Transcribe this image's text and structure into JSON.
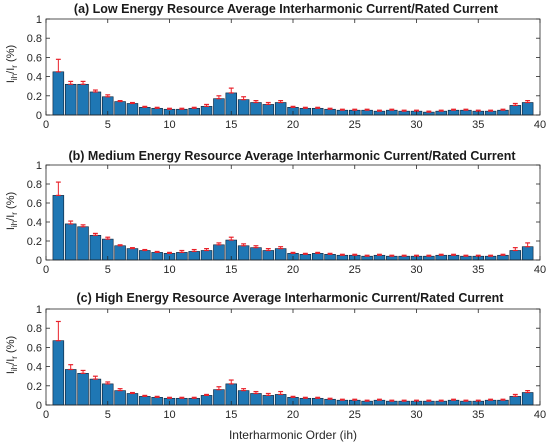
{
  "figure": {
    "xlabel": "Interharmonic Order (ih)"
  },
  "colors": {
    "bar": "#1f77b4",
    "bar_edge": "#0b1e33",
    "error": "#e8212a",
    "axis": "#262626"
  },
  "chart_data": [
    {
      "type": "bar",
      "title": "(a) Low Energy Resource Average Interharmonic Current/Rated Current",
      "ylabel": {
        "prefix": "I",
        "sub1": "ih",
        "mid": "/I",
        "sub2": "r",
        "suffix": " (%)"
      },
      "xlabel": "",
      "xlim": [
        0,
        40
      ],
      "ylim": [
        0,
        1
      ],
      "xticks": [
        0,
        5,
        10,
        15,
        20,
        25,
        30,
        35,
        40
      ],
      "xtick_labels": [
        "0",
        "5",
        "10",
        "15",
        "20",
        "25",
        "30",
        "35",
        "40"
      ],
      "yticks": [
        0,
        0.2,
        0.4,
        0.6,
        0.8,
        1
      ],
      "ytick_labels": [
        "0",
        "0.2",
        "0.4",
        "0.6",
        "0.8",
        "1"
      ],
      "x": [
        1,
        2,
        3,
        4,
        5,
        6,
        7,
        8,
        9,
        10,
        11,
        12,
        13,
        14,
        15,
        16,
        17,
        18,
        19,
        20,
        21,
        22,
        23,
        24,
        25,
        26,
        27,
        28,
        29,
        30,
        31,
        32,
        33,
        34,
        35,
        36,
        37,
        38,
        39
      ],
      "values": [
        0.45,
        0.32,
        0.32,
        0.24,
        0.19,
        0.14,
        0.12,
        0.08,
        0.07,
        0.06,
        0.06,
        0.07,
        0.09,
        0.17,
        0.23,
        0.16,
        0.13,
        0.11,
        0.13,
        0.08,
        0.07,
        0.07,
        0.06,
        0.05,
        0.05,
        0.05,
        0.04,
        0.05,
        0.04,
        0.04,
        0.03,
        0.04,
        0.05,
        0.05,
        0.04,
        0.04,
        0.05,
        0.1,
        0.13
      ],
      "error_upper": [
        0.58,
        0.35,
        0.35,
        0.26,
        0.21,
        0.15,
        0.13,
        0.09,
        0.08,
        0.07,
        0.07,
        0.08,
        0.11,
        0.2,
        0.28,
        0.19,
        0.15,
        0.13,
        0.15,
        0.09,
        0.08,
        0.08,
        0.07,
        0.06,
        0.06,
        0.06,
        0.05,
        0.06,
        0.05,
        0.05,
        0.04,
        0.05,
        0.06,
        0.06,
        0.05,
        0.05,
        0.06,
        0.12,
        0.15
      ]
    },
    {
      "type": "bar",
      "title": "(b) Medium Energy Resource Average Interharmonic Current/Rated Current",
      "ylabel": {
        "prefix": "I",
        "sub1": "ih",
        "mid": "/I",
        "sub2": "r",
        "suffix": " (%)"
      },
      "xlabel": "",
      "xlim": [
        0,
        40
      ],
      "ylim": [
        0,
        1
      ],
      "xticks": [
        0,
        5,
        10,
        15,
        20,
        25,
        30,
        35,
        40
      ],
      "xtick_labels": [
        "0",
        "5",
        "10",
        "15",
        "20",
        "25",
        "30",
        "35",
        "40"
      ],
      "yticks": [
        0,
        0.2,
        0.4,
        0.6,
        0.8,
        1
      ],
      "ytick_labels": [
        "0",
        "0.2",
        "0.4",
        "0.6",
        "0.8",
        "1"
      ],
      "x": [
        1,
        2,
        3,
        4,
        5,
        6,
        7,
        8,
        9,
        10,
        11,
        12,
        13,
        14,
        15,
        16,
        17,
        18,
        19,
        20,
        21,
        22,
        23,
        24,
        25,
        26,
        27,
        28,
        29,
        30,
        31,
        32,
        33,
        34,
        35,
        36,
        37,
        38,
        39
      ],
      "values": [
        0.68,
        0.38,
        0.35,
        0.26,
        0.22,
        0.15,
        0.12,
        0.1,
        0.08,
        0.07,
        0.08,
        0.09,
        0.1,
        0.16,
        0.21,
        0.15,
        0.13,
        0.1,
        0.12,
        0.07,
        0.06,
        0.07,
        0.06,
        0.05,
        0.05,
        0.04,
        0.05,
        0.04,
        0.04,
        0.04,
        0.04,
        0.05,
        0.05,
        0.04,
        0.04,
        0.04,
        0.05,
        0.1,
        0.14
      ],
      "error_upper": [
        0.82,
        0.41,
        0.37,
        0.28,
        0.24,
        0.16,
        0.13,
        0.11,
        0.09,
        0.08,
        0.1,
        0.11,
        0.12,
        0.18,
        0.24,
        0.17,
        0.15,
        0.12,
        0.14,
        0.08,
        0.07,
        0.08,
        0.07,
        0.06,
        0.06,
        0.05,
        0.06,
        0.05,
        0.05,
        0.05,
        0.05,
        0.06,
        0.06,
        0.05,
        0.05,
        0.05,
        0.06,
        0.13,
        0.18
      ]
    },
    {
      "type": "bar",
      "title": "(c) High Energy Resource Average Interharmonic Current/Rated Current",
      "ylabel": {
        "prefix": "I",
        "sub1": "ih",
        "mid": "/I",
        "sub2": "r",
        "suffix": " (%)"
      },
      "xlabel": "Interharmonic Order (ih)",
      "xlim": [
        0,
        40
      ],
      "ylim": [
        0,
        1
      ],
      "xticks": [
        0,
        5,
        10,
        15,
        20,
        25,
        30,
        35,
        40
      ],
      "xtick_labels": [
        "0",
        "5",
        "10",
        "15",
        "20",
        "25",
        "30",
        "35",
        "40"
      ],
      "yticks": [
        0,
        0.2,
        0.4,
        0.6,
        0.8,
        1
      ],
      "ytick_labels": [
        "0",
        "0.2",
        "0.4",
        "0.6",
        "0.8",
        "1"
      ],
      "x": [
        1,
        2,
        3,
        4,
        5,
        6,
        7,
        8,
        9,
        10,
        11,
        12,
        13,
        14,
        15,
        16,
        17,
        18,
        19,
        20,
        21,
        22,
        23,
        24,
        25,
        26,
        27,
        28,
        29,
        30,
        31,
        32,
        33,
        34,
        35,
        36,
        37,
        38,
        39
      ],
      "values": [
        0.67,
        0.37,
        0.33,
        0.27,
        0.22,
        0.15,
        0.12,
        0.09,
        0.08,
        0.07,
        0.07,
        0.07,
        0.1,
        0.16,
        0.22,
        0.15,
        0.12,
        0.1,
        0.11,
        0.08,
        0.07,
        0.07,
        0.06,
        0.05,
        0.05,
        0.04,
        0.05,
        0.04,
        0.04,
        0.04,
        0.04,
        0.04,
        0.05,
        0.04,
        0.04,
        0.05,
        0.05,
        0.09,
        0.13
      ],
      "error_upper": [
        0.87,
        0.42,
        0.36,
        0.3,
        0.24,
        0.17,
        0.13,
        0.1,
        0.09,
        0.08,
        0.08,
        0.08,
        0.11,
        0.19,
        0.26,
        0.17,
        0.14,
        0.12,
        0.14,
        0.09,
        0.08,
        0.08,
        0.07,
        0.06,
        0.06,
        0.05,
        0.06,
        0.05,
        0.05,
        0.05,
        0.05,
        0.05,
        0.06,
        0.05,
        0.05,
        0.06,
        0.06,
        0.11,
        0.15
      ]
    }
  ]
}
